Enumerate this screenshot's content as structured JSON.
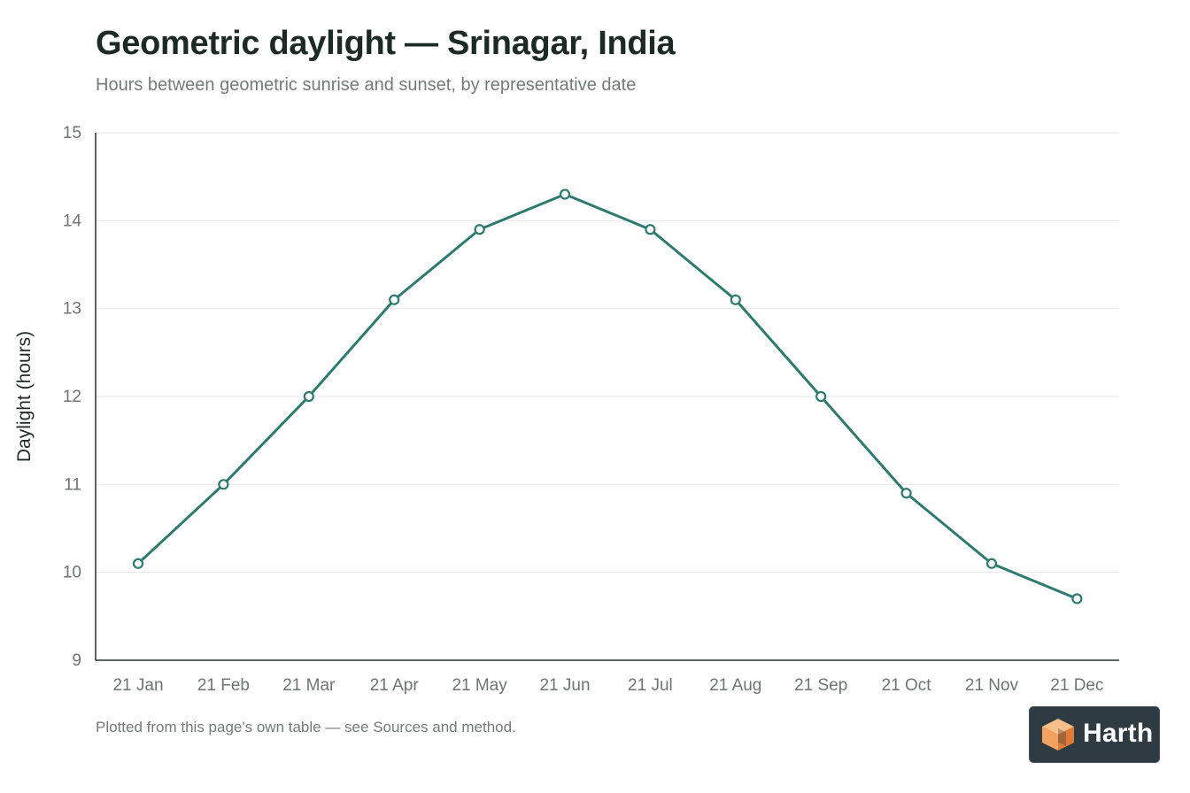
{
  "header": {
    "title": "Geometric daylight — Srinagar, India",
    "subtitle": "Hours between geometric sunrise and sunset, by representative date"
  },
  "chart_data": {
    "type": "line",
    "categories": [
      "21 Jan",
      "21 Feb",
      "21 Mar",
      "21 Apr",
      "21 May",
      "21 Jun",
      "21 Jul",
      "21 Aug",
      "21 Sep",
      "21 Oct",
      "21 Nov",
      "21 Dec"
    ],
    "values": [
      10.1,
      11.0,
      12.0,
      13.1,
      13.9,
      14.3,
      13.9,
      13.1,
      12.0,
      10.9,
      10.1,
      9.7
    ],
    "ylabel": "Daylight (hours)",
    "ylim": [
      9,
      15
    ],
    "yticks": [
      9,
      10,
      11,
      12,
      13,
      14,
      15
    ],
    "grid": true,
    "colors": {
      "line": "#2e7a6f",
      "marker_fill": "#ffffff",
      "grid": "#e6e8e7",
      "axis": "#2a302e",
      "tick_text": "#6c7572"
    }
  },
  "footer": {
    "note": "Plotted from this page's own table — see Sources and method."
  },
  "logo": {
    "text": "Harth",
    "icon": "cube-logo-icon",
    "background": "#2f3b42",
    "accent": "#f4a261"
  }
}
